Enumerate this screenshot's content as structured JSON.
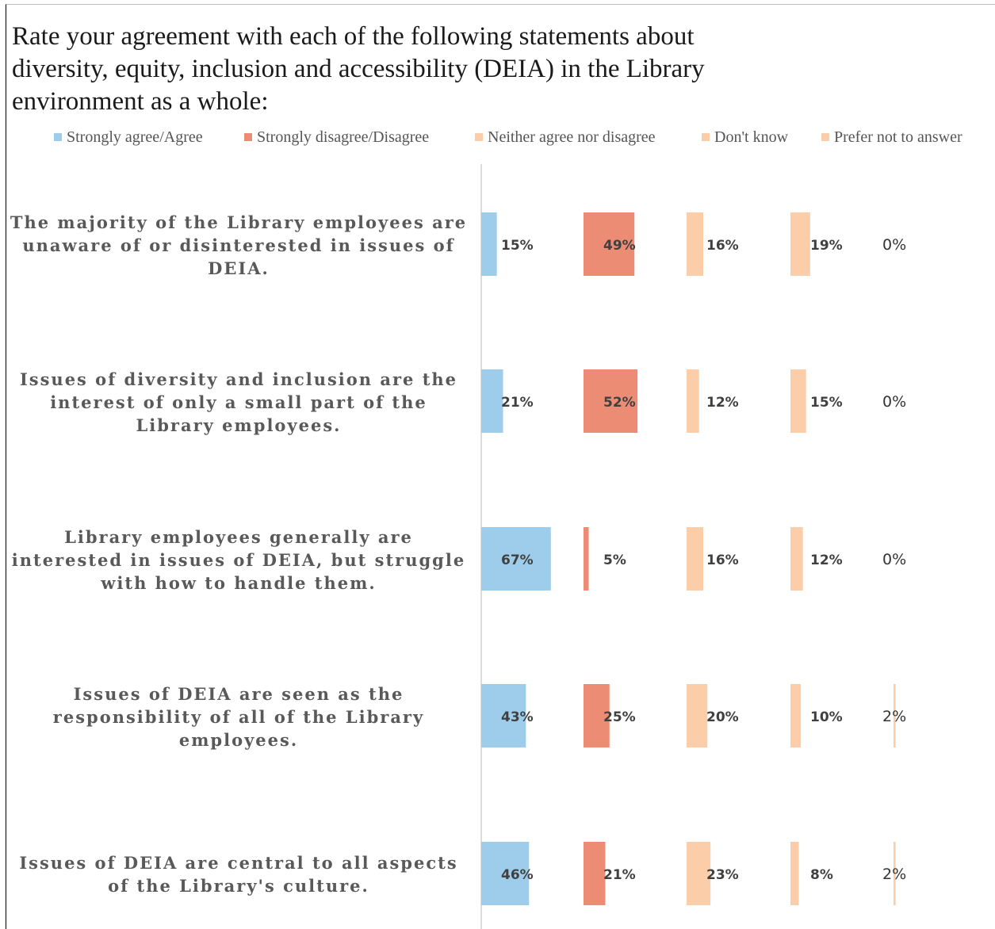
{
  "chart_data": {
    "type": "bar",
    "orientation": "horizontal",
    "layout": "small-multiples",
    "title": "Rate your agreement with each of the following statements about diversity, equity, inclusion and accessibility (DEIA) in the Library environment as a whole:",
    "categories": [
      "The majority of the Library employees are unaware of or disinterested in issues of DEIA.",
      "Issues of diversity and inclusion are the interest of only a small part of the Library employees.",
      "Library employees generally are interested in issues of DEIA, but struggle with how to handle them.",
      "Issues of DEIA are seen as the responsibility of all of the Library employees.",
      "Issues of DEIA are central to all aspects of the Library's culture."
    ],
    "series": [
      {
        "name": "Strongly agree/Agree",
        "color": "#9dcdea",
        "values": [
          15,
          21,
          67,
          43,
          46
        ],
        "labels": [
          "15%",
          "21%",
          "67%",
          "43%",
          "46%"
        ]
      },
      {
        "name": "Strongly disagree/Disagree",
        "color": "#ed8c74",
        "values": [
          49,
          52,
          5,
          25,
          21
        ],
        "labels": [
          "49%",
          "52%",
          "5%",
          "25%",
          "21%"
        ]
      },
      {
        "name": "Neither agree nor disagree",
        "color": "#fbcda9",
        "values": [
          16,
          12,
          16,
          20,
          23
        ],
        "labels": [
          "16%",
          "12%",
          "16%",
          "20%",
          "23%"
        ]
      },
      {
        "name": "Don't know",
        "color": "#fbcda9",
        "values": [
          19,
          15,
          12,
          10,
          8
        ],
        "labels": [
          "19%",
          "15%",
          "12%",
          "10%",
          "8%"
        ]
      },
      {
        "name": "Prefer not to answer",
        "color": "#fbcda9",
        "values": [
          0,
          0,
          0,
          2,
          2
        ],
        "labels": [
          "0%",
          "0%",
          "0%",
          "2%",
          "2%"
        ]
      }
    ],
    "unit": "%",
    "legend_position": "top",
    "grid": false
  }
}
